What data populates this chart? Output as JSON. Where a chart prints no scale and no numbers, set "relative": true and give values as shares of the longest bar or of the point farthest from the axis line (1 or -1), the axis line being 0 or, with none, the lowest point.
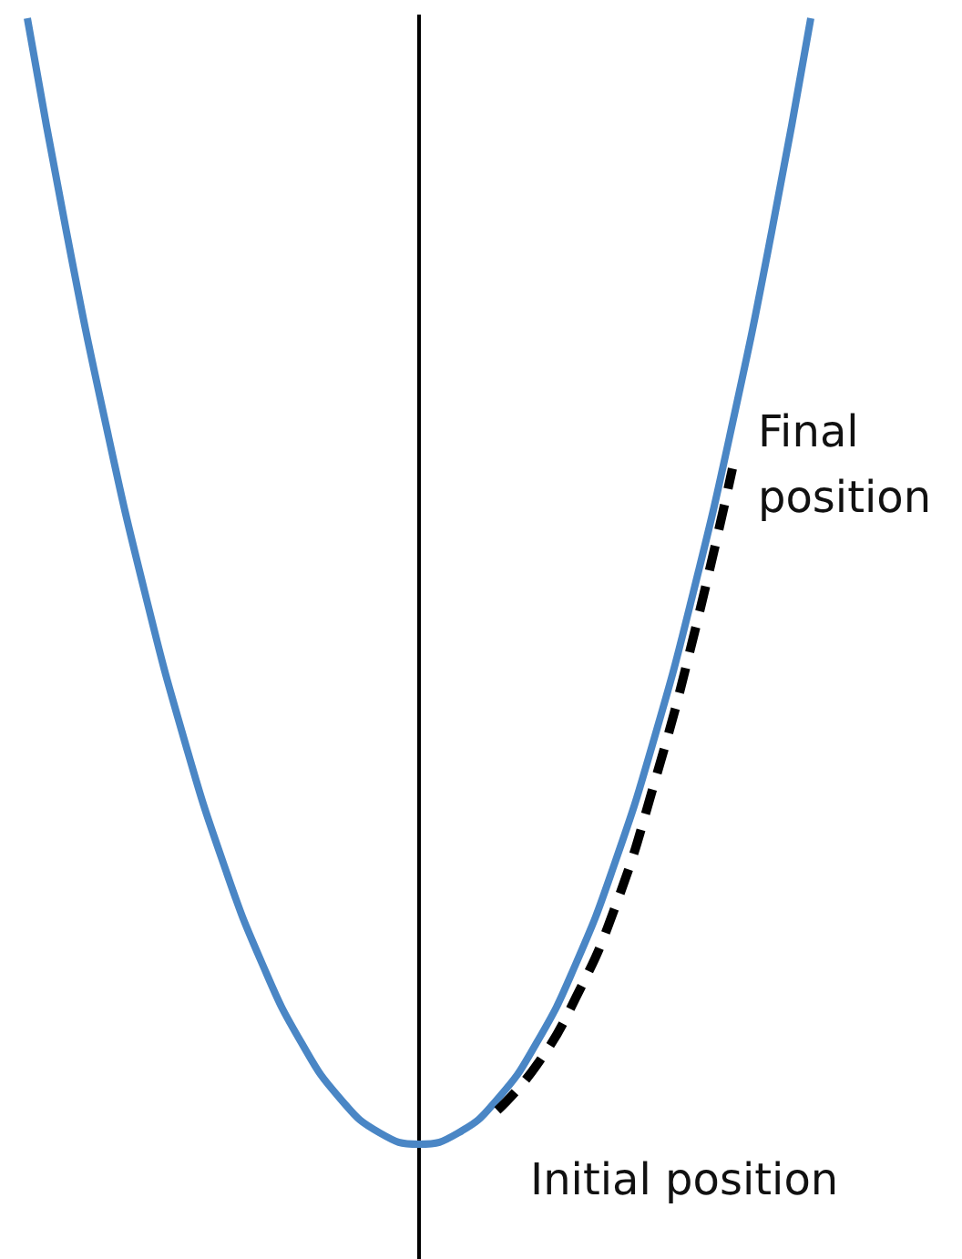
{
  "chart_data": {
    "type": "line",
    "relative": true,
    "categories": [
      null,
      null,
      null,
      null,
      null,
      null,
      null,
      null,
      null,
      null,
      null,
      null,
      null,
      null,
      null,
      null,
      null,
      null,
      null,
      null,
      null
    ],
    "series": [
      {
        "color": "#4a86c5",
        "values": [
          1,
          0.81,
          0.64,
          0.49,
          0.36,
          0.25,
          0.16,
          0.09,
          0.04,
          0.01,
          0,
          0.01,
          0.04,
          0.09,
          0.16,
          0.25,
          0.36,
          0.49,
          0.64,
          0.81,
          1
        ]
      },
      {
        "color": "#000000",
        "line_style": "dashed",
        "values": [
          null,
          null,
          null,
          null,
          null,
          null,
          null,
          null,
          null,
          null,
          null,
          null,
          0.03,
          0.07,
          0.13,
          0.21,
          0.32,
          0.45,
          0.6,
          null,
          null
        ]
      }
    ],
    "annotations": [
      "Final position",
      "Initial position"
    ],
    "marker": "none",
    "grid": false
  }
}
